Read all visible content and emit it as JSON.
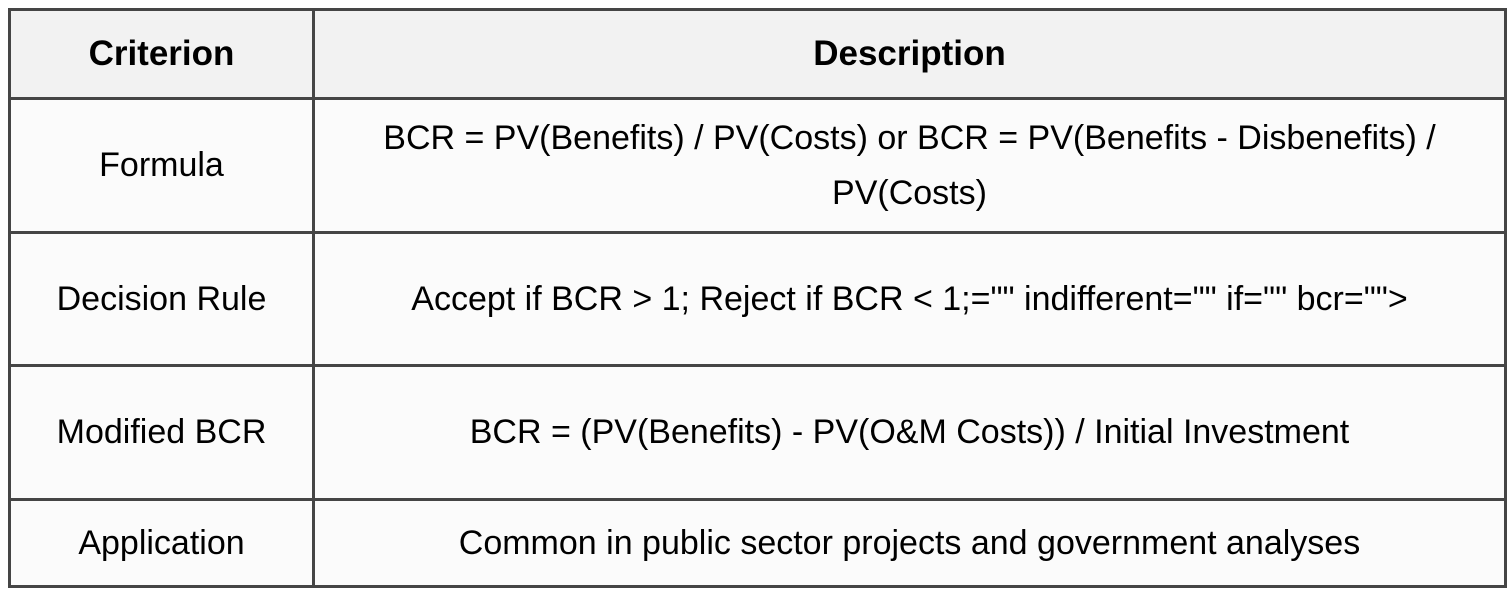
{
  "table": {
    "columns": {
      "criterion_header": "Criterion",
      "description_header": "Description"
    },
    "rows": [
      {
        "criterion": "Formula",
        "description": "BCR = PV(Benefits) / PV(Costs) or BCR = PV(Benefits - Disbenefits) / PV(Costs)"
      },
      {
        "criterion": "Decision Rule",
        "description": "Accept if BCR > 1; Reject if BCR < 1;=\"\" indifferent=\"\" if=\"\" bcr=\"\">"
      },
      {
        "criterion": "Modified BCR",
        "description": "BCR = (PV(Benefits) - PV(O&M Costs)) / Initial Investment"
      },
      {
        "criterion": "Application",
        "description": "Common in public sector projects and government analyses"
      }
    ],
    "colors": {
      "border": "#454545",
      "header_background": "#f2f2f2",
      "body_background": "#fbfbfb",
      "text": "#000000"
    }
  }
}
